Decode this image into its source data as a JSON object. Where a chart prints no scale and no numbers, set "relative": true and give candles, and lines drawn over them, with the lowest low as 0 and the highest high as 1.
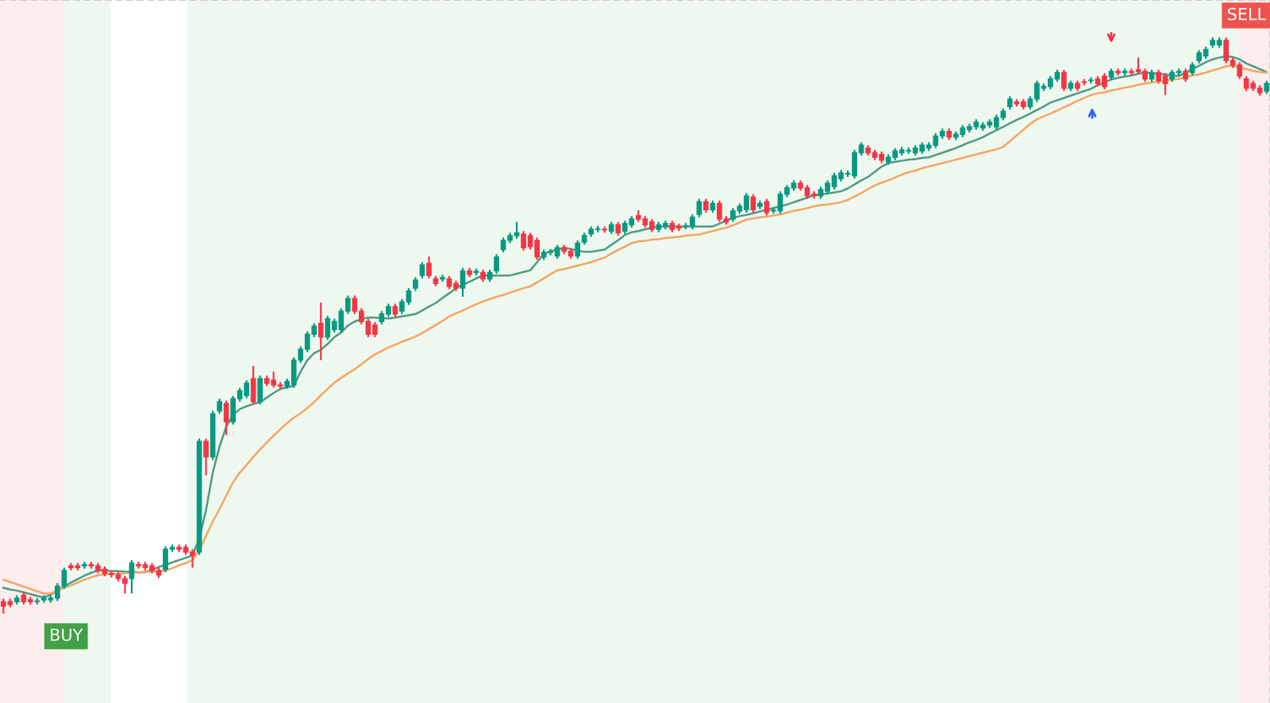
{
  "chart_data": {
    "type": "candlestick",
    "relative": true,
    "categories": [
      null,
      null,
      null,
      null,
      null,
      null,
      null,
      null,
      null,
      null,
      null,
      null,
      null,
      null,
      null,
      null,
      null,
      null,
      null,
      null,
      null,
      null,
      null,
      null,
      null,
      null,
      null,
      null,
      null,
      null,
      null,
      null,
      null,
      null,
      null,
      null,
      null,
      null,
      null,
      null,
      null,
      null,
      null,
      null,
      null,
      null,
      null,
      null,
      null,
      null,
      null,
      null,
      null,
      null,
      null,
      null,
      null,
      null,
      null,
      null,
      null,
      null,
      null,
      null,
      null,
      null,
      null,
      null,
      null,
      null,
      null,
      null,
      null,
      null,
      null,
      null,
      null,
      null,
      null,
      null,
      null,
      null,
      null,
      null,
      null,
      null,
      null,
      null,
      null,
      null,
      null,
      null,
      null,
      null,
      null,
      null,
      null,
      null,
      null,
      null,
      null,
      null,
      null,
      null,
      null,
      null,
      null,
      null,
      null,
      null,
      null,
      null,
      null,
      null,
      null,
      null,
      null,
      null,
      null,
      null,
      null,
      null,
      null,
      null,
      null,
      null,
      null,
      null,
      null,
      null,
      null,
      null,
      null,
      null,
      null,
      null,
      null,
      null,
      null,
      null,
      null,
      null,
      null,
      null,
      null,
      null,
      null,
      null,
      null,
      null,
      null,
      null,
      null,
      null,
      null,
      null,
      null,
      null,
      null,
      null,
      null,
      null,
      null,
      null,
      null,
      null,
      null,
      null,
      null,
      null,
      null,
      null,
      null,
      null,
      null,
      null,
      null,
      null,
      null,
      null,
      null,
      null,
      null,
      null,
      null,
      null,
      null,
      null
    ],
    "ohlc": [
      [
        0.021,
        0.026,
        0,
        0.013
      ],
      [
        0.021,
        0.026,
        0.011,
        0.016
      ],
      [
        0.021,
        0.032,
        0.016,
        0.027
      ],
      [
        0.032,
        0.037,
        0.016,
        0.021
      ],
      [
        0.024,
        0.029,
        0.016,
        0.021
      ],
      [
        0.021,
        0.027,
        0.016,
        0.022
      ],
      [
        0.024,
        0.032,
        0.019,
        0.027
      ],
      [
        0.024,
        0.032,
        0.019,
        0.027
      ],
      [
        0.027,
        0.053,
        0.022,
        0.048
      ],
      [
        0.048,
        0.08,
        0.043,
        0.075
      ],
      [
        0.083,
        0.088,
        0.075,
        0.08
      ],
      [
        0.083,
        0.088,
        0.075,
        0.08
      ],
      [
        0.083,
        0.09,
        0.078,
        0.085
      ],
      [
        0.085,
        0.09,
        0.078,
        0.083
      ],
      [
        0.083,
        0.088,
        0.07,
        0.075
      ],
      [
        0.077,
        0.082,
        0.065,
        0.07
      ],
      [
        0.07,
        0.075,
        0.063,
        0.068
      ],
      [
        0.067,
        0.072,
        0.056,
        0.061
      ],
      [
        0.061,
        0.066,
        0.035,
        0.053
      ],
      [
        0.061,
        0.093,
        0.035,
        0.088
      ],
      [
        0.085,
        0.09,
        0.078,
        0.083
      ],
      [
        0.085,
        0.09,
        0.075,
        0.08
      ],
      [
        0.083,
        0.088,
        0.07,
        0.075
      ],
      [
        0.075,
        0.08,
        0.062,
        0.067
      ],
      [
        0.077,
        0.117,
        0.072,
        0.112
      ],
      [
        0.112,
        0.12,
        0.107,
        0.115
      ],
      [
        0.115,
        0.12,
        0.107,
        0.112
      ],
      [
        0.115,
        0.12,
        0.102,
        0.107
      ],
      [
        0.107,
        0.112,
        0.08,
        0.101
      ],
      [
        0.107,
        0.304,
        0.102,
        0.299
      ],
      [
        0.299,
        0.304,
        0.24,
        0.272
      ],
      [
        0.272,
        0.352,
        0.267,
        0.347
      ],
      [
        0.352,
        0.373,
        0.347,
        0.368
      ],
      [
        0.365,
        0.37,
        0.31,
        0.333
      ],
      [
        0.333,
        0.378,
        0.328,
        0.373
      ],
      [
        0.373,
        0.392,
        0.368,
        0.387
      ],
      [
        0.379,
        0.405,
        0.374,
        0.4
      ],
      [
        0.408,
        0.43,
        0.363,
        0.368
      ],
      [
        0.368,
        0.413,
        0.363,
        0.408
      ],
      [
        0.408,
        0.413,
        0.395,
        0.4
      ],
      [
        0.405,
        0.42,
        0.392,
        0.397
      ],
      [
        0.397,
        0.402,
        0.39,
        0.395
      ],
      [
        0.395,
        0.408,
        0.39,
        0.403
      ],
      [
        0.397,
        0.445,
        0.392,
        0.44
      ],
      [
        0.44,
        0.464,
        0.435,
        0.459
      ],
      [
        0.459,
        0.49,
        0.454,
        0.485
      ],
      [
        0.485,
        0.504,
        0.48,
        0.499
      ],
      [
        0.504,
        0.54,
        0.44,
        0.48
      ],
      [
        0.48,
        0.517,
        0.475,
        0.512
      ],
      [
        0.493,
        0.512,
        0.488,
        0.507
      ],
      [
        0.493,
        0.53,
        0.488,
        0.525
      ],
      [
        0.525,
        0.552,
        0.52,
        0.547
      ],
      [
        0.547,
        0.552,
        0.52,
        0.525
      ],
      [
        0.525,
        0.53,
        0.502,
        0.507
      ],
      [
        0.507,
        0.512,
        0.48,
        0.485
      ],
      [
        0.501,
        0.506,
        0.48,
        0.485
      ],
      [
        0.507,
        0.525,
        0.502,
        0.52
      ],
      [
        0.52,
        0.538,
        0.515,
        0.533
      ],
      [
        0.533,
        0.538,
        0.515,
        0.52
      ],
      [
        0.525,
        0.546,
        0.52,
        0.541
      ],
      [
        0.541,
        0.565,
        0.536,
        0.56
      ],
      [
        0.565,
        0.584,
        0.56,
        0.579
      ],
      [
        0.587,
        0.61,
        0.582,
        0.605
      ],
      [
        0.608,
        0.62,
        0.582,
        0.587
      ],
      [
        0.581,
        0.586,
        0.568,
        0.573
      ],
      [
        0.581,
        0.588,
        0.576,
        0.583
      ],
      [
        0.581,
        0.586,
        0.563,
        0.568
      ],
      [
        0.573,
        0.578,
        0.56,
        0.565
      ],
      [
        0.565,
        0.6,
        0.55,
        0.595
      ],
      [
        0.595,
        0.6,
        0.584,
        0.589
      ],
      [
        0.592,
        0.599,
        0.587,
        0.594
      ],
      [
        0.592,
        0.597,
        0.576,
        0.581
      ],
      [
        0.581,
        0.597,
        0.576,
        0.592
      ],
      [
        0.595,
        0.624,
        0.59,
        0.619
      ],
      [
        0.632,
        0.653,
        0.627,
        0.648
      ],
      [
        0.648,
        0.661,
        0.643,
        0.656
      ],
      [
        0.656,
        0.68,
        0.651,
        0.661
      ],
      [
        0.659,
        0.664,
        0.63,
        0.635
      ],
      [
        0.656,
        0.661,
        0.632,
        0.637
      ],
      [
        0.648,
        0.653,
        0.614,
        0.619
      ],
      [
        0.619,
        0.632,
        0.614,
        0.627
      ],
      [
        0.627,
        0.633,
        0.622,
        0.628
      ],
      [
        0.621,
        0.64,
        0.616,
        0.635
      ],
      [
        0.635,
        0.64,
        0.624,
        0.629
      ],
      [
        0.629,
        0.634,
        0.616,
        0.621
      ],
      [
        0.621,
        0.648,
        0.616,
        0.643
      ],
      [
        0.645,
        0.661,
        0.64,
        0.656
      ],
      [
        0.659,
        0.672,
        0.654,
        0.667
      ],
      [
        0.667,
        0.673,
        0.662,
        0.668
      ],
      [
        0.667,
        0.672,
        0.661,
        0.666
      ],
      [
        0.664,
        0.68,
        0.659,
        0.675
      ],
      [
        0.675,
        0.68,
        0.656,
        0.661
      ],
      [
        0.664,
        0.682,
        0.659,
        0.677
      ],
      [
        0.675,
        0.69,
        0.67,
        0.685
      ],
      [
        0.691,
        0.7,
        0.68,
        0.685
      ],
      [
        0.685,
        0.69,
        0.67,
        0.675
      ],
      [
        0.68,
        0.685,
        0.662,
        0.667
      ],
      [
        0.667,
        0.68,
        0.662,
        0.675
      ],
      [
        0.672,
        0.682,
        0.667,
        0.677
      ],
      [
        0.677,
        0.682,
        0.662,
        0.667
      ],
      [
        0.672,
        0.677,
        0.664,
        0.669
      ],
      [
        0.672,
        0.678,
        0.667,
        0.673
      ],
      [
        0.672,
        0.693,
        0.667,
        0.688
      ],
      [
        0.693,
        0.72,
        0.688,
        0.715
      ],
      [
        0.715,
        0.72,
        0.696,
        0.701
      ],
      [
        0.701,
        0.717,
        0.696,
        0.712
      ],
      [
        0.712,
        0.717,
        0.68,
        0.685
      ],
      [
        0.685,
        0.69,
        0.675,
        0.68
      ],
      [
        0.685,
        0.704,
        0.68,
        0.699
      ],
      [
        0.699,
        0.712,
        0.694,
        0.707
      ],
      [
        0.701,
        0.73,
        0.696,
        0.725
      ],
      [
        0.723,
        0.728,
        0.696,
        0.701
      ],
      [
        0.707,
        0.717,
        0.702,
        0.712
      ],
      [
        0.715,
        0.72,
        0.691,
        0.696
      ],
      [
        0.699,
        0.705,
        0.694,
        0.7
      ],
      [
        0.699,
        0.733,
        0.694,
        0.728
      ],
      [
        0.728,
        0.744,
        0.723,
        0.739
      ],
      [
        0.739,
        0.752,
        0.734,
        0.747
      ],
      [
        0.747,
        0.752,
        0.734,
        0.739
      ],
      [
        0.739,
        0.744,
        0.72,
        0.725
      ],
      [
        0.728,
        0.733,
        0.72,
        0.725
      ],
      [
        0.725,
        0.741,
        0.72,
        0.736
      ],
      [
        0.733,
        0.752,
        0.728,
        0.747
      ],
      [
        0.741,
        0.765,
        0.736,
        0.76
      ],
      [
        0.755,
        0.77,
        0.75,
        0.765
      ],
      [
        0.763,
        0.769,
        0.758,
        0.764
      ],
      [
        0.76,
        0.805,
        0.755,
        0.8
      ],
      [
        0.8,
        0.818,
        0.795,
        0.813
      ],
      [
        0.808,
        0.813,
        0.795,
        0.8
      ],
      [
        0.8,
        0.805,
        0.787,
        0.792
      ],
      [
        0.797,
        0.802,
        0.782,
        0.787
      ],
      [
        0.784,
        0.797,
        0.779,
        0.792
      ],
      [
        0.792,
        0.808,
        0.787,
        0.803
      ],
      [
        0.8,
        0.81,
        0.795,
        0.805
      ],
      [
        0.803,
        0.809,
        0.798,
        0.804
      ],
      [
        0.8,
        0.813,
        0.795,
        0.808
      ],
      [
        0.803,
        0.818,
        0.798,
        0.813
      ],
      [
        0.808,
        0.818,
        0.803,
        0.813
      ],
      [
        0.813,
        0.834,
        0.808,
        0.829
      ],
      [
        0.829,
        0.842,
        0.824,
        0.837
      ],
      [
        0.837,
        0.842,
        0.822,
        0.827
      ],
      [
        0.827,
        0.837,
        0.822,
        0.832
      ],
      [
        0.832,
        0.848,
        0.827,
        0.843
      ],
      [
        0.84,
        0.85,
        0.835,
        0.845
      ],
      [
        0.845,
        0.858,
        0.84,
        0.853
      ],
      [
        0.843,
        0.853,
        0.838,
        0.848
      ],
      [
        0.848,
        0.858,
        0.843,
        0.853
      ],
      [
        0.845,
        0.866,
        0.84,
        0.861
      ],
      [
        0.861,
        0.877,
        0.856,
        0.872
      ],
      [
        0.88,
        0.898,
        0.875,
        0.893
      ],
      [
        0.888,
        0.893,
        0.88,
        0.885
      ],
      [
        0.888,
        0.893,
        0.875,
        0.88
      ],
      [
        0.88,
        0.898,
        0.875,
        0.893
      ],
      [
        0.893,
        0.925,
        0.888,
        0.92
      ],
      [
        0.912,
        0.92,
        0.907,
        0.915
      ],
      [
        0.915,
        0.933,
        0.91,
        0.928
      ],
      [
        0.928,
        0.944,
        0.923,
        0.939
      ],
      [
        0.939,
        0.944,
        0.907,
        0.912
      ],
      [
        0.912,
        0.925,
        0.907,
        0.92
      ],
      [
        0.92,
        0.925,
        0.907,
        0.912
      ],
      [
        0.923,
        0.928,
        0.917,
        0.922
      ],
      [
        0.925,
        0.931,
        0.92,
        0.926
      ],
      [
        0.928,
        0.933,
        0.915,
        0.92
      ],
      [
        0.933,
        0.938,
        0.91,
        0.915
      ],
      [
        0.931,
        0.946,
        0.926,
        0.941
      ],
      [
        0.941,
        0.946,
        0.934,
        0.939
      ],
      [
        0.939,
        0.946,
        0.934,
        0.941
      ],
      [
        0.941,
        0.946,
        0.934,
        0.939
      ],
      [
        0.944,
        0.965,
        0.936,
        0.941
      ],
      [
        0.941,
        0.946,
        0.923,
        0.928
      ],
      [
        0.928,
        0.944,
        0.923,
        0.939
      ],
      [
        0.939,
        0.944,
        0.92,
        0.925
      ],
      [
        0.933,
        0.938,
        0.9,
        0.92
      ],
      [
        0.928,
        0.944,
        0.923,
        0.939
      ],
      [
        0.939,
        0.946,
        0.934,
        0.941
      ],
      [
        0.941,
        0.946,
        0.923,
        0.928
      ],
      [
        0.939,
        0.957,
        0.934,
        0.952
      ],
      [
        0.96,
        0.978,
        0.955,
        0.973
      ],
      [
        0.968,
        0.984,
        0.963,
        0.979
      ],
      [
        0.987,
        1,
        0.982,
        0.995
      ],
      [
        0.987,
        1,
        0.982,
        0.995
      ],
      [
        0.995,
        1,
        0.955,
        0.96
      ],
      [
        0.96,
        0.965,
        0.947,
        0.952
      ],
      [
        0.952,
        0.957,
        0.928,
        0.933
      ],
      [
        0.928,
        0.933,
        0.907,
        0.912
      ],
      [
        0.92,
        0.925,
        0.907,
        0.912
      ],
      [
        0.912,
        0.917,
        0.899,
        0.904
      ],
      [
        0.907,
        0.925,
        0.902,
        0.92
      ]
    ],
    "colors": [
      "#f23645",
      "#f23645",
      "#089981",
      "#f23645",
      "#f23645",
      "#089981",
      "#089981",
      "#089981",
      "#089981",
      "#089981",
      "#f23645",
      "#f23645",
      "#089981",
      "#f23645",
      "#f23645",
      "#f23645",
      "#f23645",
      "#f23645",
      "#f23645",
      "#089981",
      "#f23645",
      "#f23645",
      "#f23645",
      "#f23645",
      "#089981",
      "#089981",
      "#f23645",
      "#f23645",
      "#f23645",
      "#089981",
      "#f23645",
      "#089981",
      "#089981",
      "#f23645",
      "#089981",
      "#089981",
      "#089981",
      "#f23645",
      "#089981",
      "#f23645",
      "#f23645",
      "#f23645",
      "#089981",
      "#089981",
      "#089981",
      "#089981",
      "#089981",
      "#f23645",
      "#089981",
      "#089981",
      "#089981",
      "#089981",
      "#f23645",
      "#f23645",
      "#f23645",
      "#f23645",
      "#089981",
      "#089981",
      "#f23645",
      "#089981",
      "#089981",
      "#089981",
      "#089981",
      "#f23645",
      "#f23645",
      "#089981",
      "#f23645",
      "#f23645",
      "#089981",
      "#f23645",
      "#089981",
      "#f23645",
      "#089981",
      "#089981",
      "#089981",
      "#089981",
      "#089981",
      "#f23645",
      "#f23645",
      "#f23645",
      "#089981",
      "#089981",
      "#089981",
      "#f23645",
      "#f23645",
      "#089981",
      "#089981",
      "#089981",
      "#089981",
      "#f23645",
      "#089981",
      "#f23645",
      "#089981",
      "#089981",
      "#f23645",
      "#f23645",
      "#f23645",
      "#089981",
      "#089981",
      "#f23645",
      "#f23645",
      "#089981",
      "#089981",
      "#089981",
      "#f23645",
      "#089981",
      "#f23645",
      "#f23645",
      "#089981",
      "#089981",
      "#089981",
      "#f23645",
      "#089981",
      "#f23645",
      "#089981",
      "#089981",
      "#089981",
      "#089981",
      "#f23645",
      "#f23645",
      "#f23645",
      "#089981",
      "#089981",
      "#089981",
      "#089981",
      "#089981",
      "#089981",
      "#089981",
      "#f23645",
      "#f23645",
      "#f23645",
      "#089981",
      "#089981",
      "#089981",
      "#089981",
      "#089981",
      "#089981",
      "#089981",
      "#089981",
      "#089981",
      "#f23645",
      "#089981",
      "#089981",
      "#089981",
      "#089981",
      "#089981",
      "#089981",
      "#089981",
      "#089981",
      "#089981",
      "#f23645",
      "#f23645",
      "#089981",
      "#089981",
      "#089981",
      "#089981",
      "#089981",
      "#f23645",
      "#089981",
      "#f23645",
      "#f23645",
      "#089981",
      "#f23645",
      "#f23645",
      "#089981",
      "#f23645",
      "#089981",
      "#f23645",
      "#f23645",
      "#f23645",
      "#089981",
      "#f23645",
      "#f23645",
      "#089981",
      "#089981",
      "#f23645",
      "#089981",
      "#089981",
      "#089981",
      "#089981",
      "#089981",
      "#f23645",
      "#f23645",
      "#f23645",
      "#f23645",
      "#f23645",
      "#f23645",
      "#089981"
    ],
    "series": [
      {
        "type": "line",
        "color": "#4f9a82",
        "values": [
          0.045,
          0.042,
          0.04,
          0.037,
          0.034,
          0.031,
          0.028,
          0.033,
          0.04,
          0.047,
          0.054,
          0.06,
          0.066,
          0.071,
          0.075,
          0.075,
          0.074,
          0.074,
          0.073,
          0.073,
          0.072,
          0.072,
          0.076,
          0.081,
          0.085,
          0.089,
          0.093,
          0.097,
          0.101,
          0.13,
          0.18,
          0.245,
          0.29,
          0.325,
          0.345,
          0.355,
          0.36,
          0.364,
          0.367,
          0.375,
          0.383,
          0.39,
          0.393,
          0.395,
          0.42,
          0.44,
          0.452,
          0.458,
          0.468,
          0.48,
          0.488,
          0.5,
          0.507,
          0.511,
          0.514,
          0.514,
          0.513,
          0.512,
          0.514,
          0.516,
          0.518,
          0.52,
          0.526,
          0.533,
          0.539,
          0.548,
          0.556,
          0.565,
          0.571,
          0.576,
          0.582,
          0.587,
          0.587,
          0.587,
          0.587,
          0.587,
          0.59,
          0.593,
          0.596,
          0.61,
          0.624,
          0.629,
          0.632,
          0.635,
          0.633,
          0.63,
          0.628,
          0.628,
          0.63,
          0.632,
          0.64,
          0.648,
          0.657,
          0.662,
          0.664,
          0.667,
          0.67,
          0.672,
          0.672,
          0.672,
          0.672,
          0.672,
          0.672,
          0.672,
          0.672,
          0.672,
          0.677,
          0.682,
          0.687,
          0.69,
          0.692,
          0.695,
          0.698,
          0.701,
          0.704,
          0.707,
          0.71,
          0.714,
          0.718,
          0.722,
          0.726,
          0.728,
          0.729,
          0.731,
          0.733,
          0.738,
          0.745,
          0.752,
          0.758,
          0.767,
          0.776,
          0.782,
          0.784,
          0.786,
          0.788,
          0.789,
          0.791,
          0.792,
          0.796,
          0.8,
          0.804,
          0.808,
          0.813,
          0.818,
          0.822,
          0.827,
          0.833,
          0.839,
          0.845,
          0.851,
          0.857,
          0.862,
          0.868,
          0.874,
          0.88,
          0.887,
          0.891,
          0.895,
          0.899,
          0.903,
          0.907,
          0.911,
          0.917,
          0.922,
          0.927,
          0.93,
          0.932,
          0.934,
          0.937,
          0.939,
          0.938,
          0.937,
          0.936,
          0.934,
          0.933,
          0.939,
          0.945,
          0.951,
          0.957,
          0.962,
          0.965,
          0.968,
          0.966,
          0.962,
          0.955,
          0.95,
          0.945,
          0.94
        ]
      },
      {
        "type": "line",
        "color": "#f5a462",
        "values": [
          0.059,
          0.055,
          0.051,
          0.047,
          0.043,
          0.039,
          0.035,
          0.035,
          0.04,
          0.045,
          0.049,
          0.054,
          0.059,
          0.063,
          0.067,
          0.068,
          0.069,
          0.069,
          0.07,
          0.071,
          0.072,
          0.073,
          0.073,
          0.074,
          0.075,
          0.079,
          0.084,
          0.088,
          0.093,
          0.11,
          0.135,
          0.16,
          0.182,
          0.205,
          0.228,
          0.245,
          0.258,
          0.272,
          0.285,
          0.297,
          0.309,
          0.32,
          0.331,
          0.34,
          0.348,
          0.357,
          0.367,
          0.379,
          0.39,
          0.401,
          0.409,
          0.417,
          0.424,
          0.433,
          0.442,
          0.45,
          0.456,
          0.462,
          0.467,
          0.472,
          0.476,
          0.481,
          0.487,
          0.494,
          0.501,
          0.508,
          0.516,
          0.521,
          0.526,
          0.532,
          0.537,
          0.542,
          0.546,
          0.55,
          0.553,
          0.557,
          0.561,
          0.565,
          0.568,
          0.575,
          0.582,
          0.589,
          0.596,
          0.598,
          0.601,
          0.604,
          0.607,
          0.61,
          0.614,
          0.618,
          0.625,
          0.631,
          0.637,
          0.643,
          0.646,
          0.647,
          0.649,
          0.65,
          0.652,
          0.653,
          0.654,
          0.656,
          0.657,
          0.658,
          0.661,
          0.664,
          0.667,
          0.67,
          0.674,
          0.679,
          0.684,
          0.686,
          0.688,
          0.689,
          0.691,
          0.693,
          0.696,
          0.699,
          0.701,
          0.704,
          0.707,
          0.709,
          0.71,
          0.712,
          0.714,
          0.718,
          0.724,
          0.73,
          0.737,
          0.743,
          0.748,
          0.752,
          0.757,
          0.762,
          0.766,
          0.769,
          0.773,
          0.776,
          0.779,
          0.782,
          0.785,
          0.788,
          0.791,
          0.794,
          0.797,
          0.8,
          0.803,
          0.806,
          0.81,
          0.82,
          0.83,
          0.84,
          0.85,
          0.858,
          0.863,
          0.868,
          0.873,
          0.879,
          0.884,
          0.89,
          0.895,
          0.9,
          0.903,
          0.905,
          0.908,
          0.91,
          0.913,
          0.915,
          0.918,
          0.92,
          0.922,
          0.923,
          0.925,
          0.927,
          0.928,
          0.931,
          0.934,
          0.936,
          0.939,
          0.943,
          0.946,
          0.95,
          0.951,
          0.948,
          0.945,
          0.942,
          0.94,
          0.939
        ]
      }
    ],
    "annotations": [
      "BUY",
      "SELL"
    ]
  }
}
